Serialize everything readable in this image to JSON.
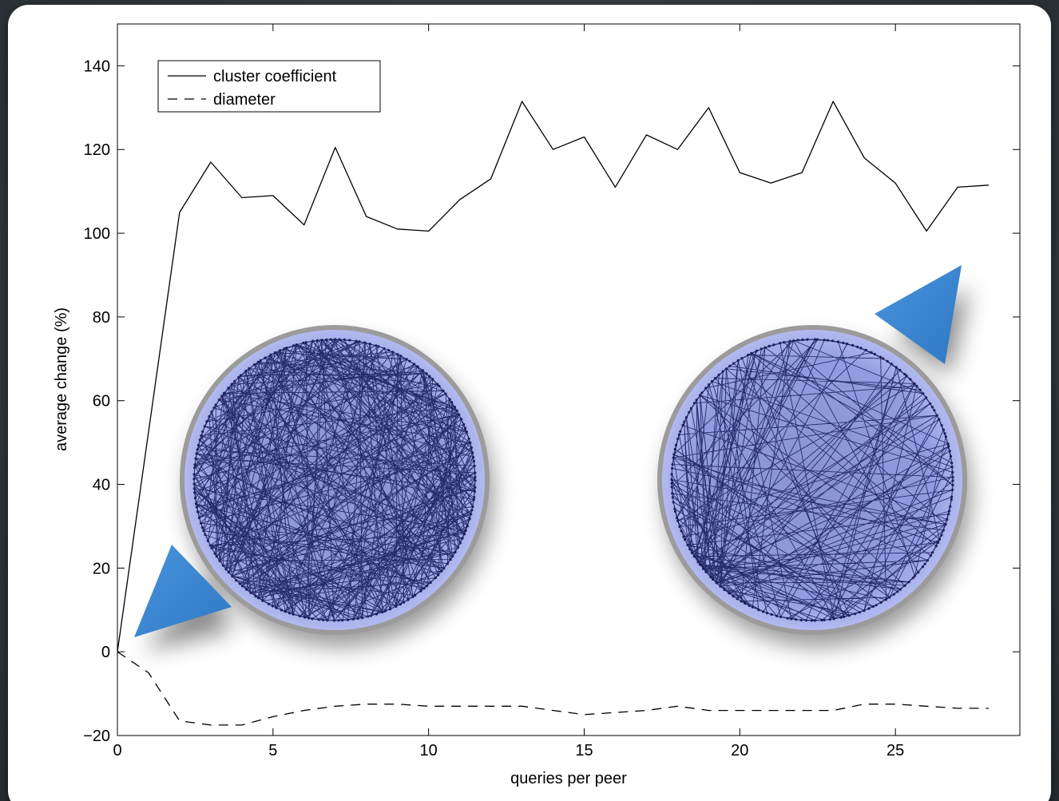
{
  "chart_data": {
    "type": "line",
    "xlabel": "queries per peer",
    "ylabel": "average change (%)",
    "xlim": [
      0,
      29
    ],
    "ylim": [
      -20,
      150
    ],
    "xticks": [
      0,
      5,
      10,
      15,
      20,
      25
    ],
    "xtick_labels": [
      "0",
      "5",
      "10",
      "15",
      "20",
      "25"
    ],
    "yticks": [
      -20,
      0,
      20,
      40,
      60,
      80,
      100,
      120,
      140
    ],
    "ytick_labels": [
      "−20",
      "0",
      "20",
      "40",
      "60",
      "80",
      "100",
      "120",
      "140"
    ],
    "grid": false,
    "legend_position": "top-left",
    "series": [
      {
        "name": "cluster coefficient",
        "style": "solid",
        "x": [
          0,
          2,
          3,
          4,
          5,
          6,
          7,
          8,
          9,
          10,
          11,
          12,
          13,
          14,
          15,
          16,
          17,
          18,
          19,
          20,
          21,
          22,
          23,
          24,
          25,
          26,
          27,
          28
        ],
        "y": [
          0,
          105,
          117,
          108.5,
          109,
          102,
          120.5,
          104,
          101,
          100.5,
          108,
          113,
          131.5,
          120,
          123,
          111,
          123.5,
          120,
          130,
          114.5,
          112,
          114.5,
          131.5,
          118,
          112,
          100.5,
          111,
          111.5
        ]
      },
      {
        "name": "diameter",
        "style": "dashed",
        "x": [
          0,
          1,
          2,
          3,
          4,
          5,
          6,
          7,
          8,
          9,
          10,
          11,
          12,
          13,
          14,
          15,
          16,
          17,
          18,
          19,
          20,
          21,
          22,
          23,
          24,
          25,
          26,
          27,
          28
        ],
        "y": [
          0,
          -5,
          -16.5,
          -17.5,
          -17.5,
          -15.5,
          -14,
          -13,
          -12.5,
          -12.5,
          -13,
          -13,
          -13,
          -13,
          -14,
          -15,
          -14.5,
          -14,
          -13,
          -14,
          -14,
          -14,
          -14,
          -14,
          -12.5,
          -12.5,
          -13,
          -13.5,
          -13.5
        ]
      }
    ]
  },
  "overlay": {
    "circle_fill": "#8e98d8",
    "edge_color": "#1c1f5e",
    "pointer_color": "#3c86d2"
  }
}
